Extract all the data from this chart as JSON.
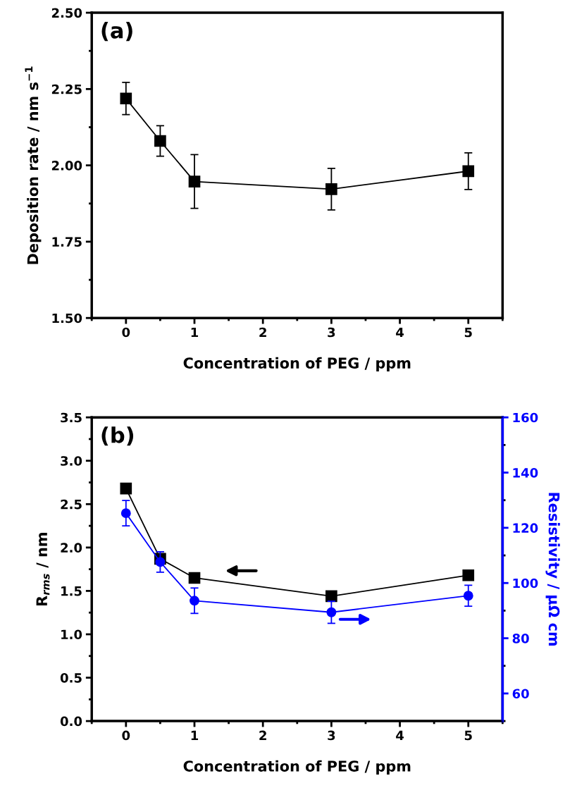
{
  "chart_data": [
    {
      "type": "line",
      "xlabel": "Concentration of PEG / ppm",
      "ylabel": "Deposition rate / nm s$^{−1}$",
      "x": [
        0,
        0.5,
        1,
        3,
        5
      ],
      "xlim": [
        -0.5,
        5.5
      ],
      "xticks": [
        0,
        1,
        2,
        3,
        4,
        5
      ],
      "ylim": [
        1.5,
        2.5
      ],
      "yticks": [
        {
          "value": 1.5,
          "label": "1.50"
        },
        {
          "value": 1.75,
          "label": "1.75"
        },
        {
          "value": 2.0,
          "label": "2.00"
        },
        {
          "value": 2.25,
          "label": "2.25"
        },
        {
          "value": 2.5,
          "label": "2.50"
        }
      ],
      "marker": "square",
      "line_style": "solid",
      "grid": false,
      "legend": false,
      "series": [
        {
          "color": "#000000",
          "values": [
            2.219,
            2.08,
            1.947,
            1.922,
            1.981
          ],
          "errors": [
            0.053,
            0.05,
            0.088,
            0.068,
            0.06
          ]
        }
      ],
      "annotations": [
        "(a)"
      ]
    },
    {
      "type": "line",
      "xlabel": "Concentration of PEG / ppm",
      "ylabel": "R$_{rms}$ / nm",
      "y2label": "Resistivity / µΩ cm",
      "x": [
        0,
        0.5,
        1,
        3,
        5
      ],
      "xlim": [
        -0.5,
        5.5
      ],
      "xticks": [
        0,
        1,
        2,
        3,
        4,
        5
      ],
      "ylim": [
        0,
        3.5
      ],
      "yticks": [
        {
          "value": 0,
          "label": "0.0"
        },
        {
          "value": 0.5,
          "label": "0.5"
        },
        {
          "value": 1,
          "label": "1.0"
        },
        {
          "value": 1.5,
          "label": "1.5"
        },
        {
          "value": 2,
          "label": "2.0"
        },
        {
          "value": 2.5,
          "label": "2.5"
        },
        {
          "value": 3,
          "label": "3.0"
        },
        {
          "value": 3.5,
          "label": "3.5"
        }
      ],
      "y2lim": [
        50,
        160
      ],
      "y2ticks": [
        60,
        80,
        100,
        120,
        140,
        160
      ],
      "line_style": "solid",
      "grid": false,
      "legend": false,
      "series": [
        {
          "color": "#000000",
          "marker": "square",
          "values": [
            2.68,
            1.87,
            1.65,
            1.44,
            1.68
          ]
        },
        {
          "color": "#0000ff",
          "marker": "circle",
          "axis": "y2",
          "values": [
            125.3,
            107.6,
            93.6,
            89.4,
            95.4
          ],
          "errors": [
            4.6,
            3.7,
            4.6,
            4,
            3.8
          ]
        }
      ],
      "annotations": [
        "(b)"
      ]
    }
  ]
}
